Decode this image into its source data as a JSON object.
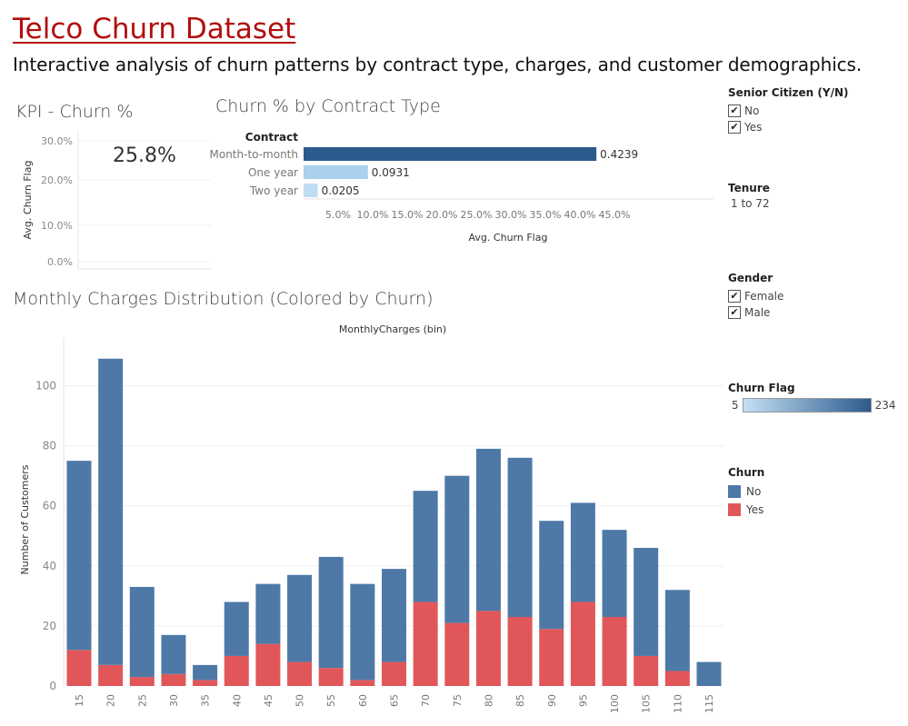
{
  "header": {
    "title": "Telco Churn Dataset",
    "subtitle": "Interactive analysis of churn patterns by contract type, charges, and customer demographics."
  },
  "kpi": {
    "title": "KPI - Churn %",
    "value": "25.8%",
    "ylabel": "Avg. Churn Flag",
    "ticks": [
      "30.0%",
      "20.0%",
      "10.0%",
      "0.0%"
    ]
  },
  "filters": {
    "senior": {
      "title": "Senior Citizen (Y/N)",
      "options": [
        {
          "label": "No",
          "checked": true
        },
        {
          "label": "Yes",
          "checked": true
        }
      ]
    },
    "tenure": {
      "title": "Tenure",
      "value": "1 to 72"
    },
    "gender": {
      "title": "Gender",
      "options": [
        {
          "label": "Female",
          "checked": true
        },
        {
          "label": "Male",
          "checked": true
        }
      ]
    },
    "churn_flag": {
      "title": "Churn Flag",
      "min": "5",
      "max": "234"
    },
    "churn_legend": {
      "title": "Churn",
      "items": [
        {
          "label": "No",
          "color": "#4e79a7"
        },
        {
          "label": "Yes",
          "color": "#e15759"
        }
      ]
    }
  },
  "chart_data": [
    {
      "type": "bar",
      "orientation": "horizontal",
      "title": "Churn % by Contract Type",
      "category_header": "Contract",
      "categories": [
        "Month-to-month",
        "One year",
        "Two year"
      ],
      "values": [
        0.4239,
        0.0931,
        0.0205
      ],
      "labels": [
        "0.4239",
        "0.0931",
        "0.0205"
      ],
      "colors": [
        "#2b5a8c",
        "#a9d0ec",
        "#c0dcf2"
      ],
      "xlabel": "Avg. Churn Flag",
      "xticks": [
        "5.0%",
        "10.0%",
        "15.0%",
        "20.0%",
        "25.0%",
        "30.0%",
        "35.0%",
        "40.0%",
        "45.0%"
      ],
      "xlim": [
        0,
        0.5
      ]
    },
    {
      "type": "bar",
      "stacked": true,
      "title": "Monthly Charges Distribution (Colored by Churn)",
      "xlabel": "MonthlyCharges (bin)",
      "ylabel": "Number of Customers",
      "categories": [
        "15",
        "20",
        "25",
        "30",
        "35",
        "40",
        "45",
        "50",
        "55",
        "60",
        "65",
        "70",
        "75",
        "80",
        "85",
        "90",
        "95",
        "100",
        "105",
        "110",
        "115"
      ],
      "series": [
        {
          "name": "Yes",
          "color": "#e15759",
          "values": [
            12,
            7,
            3,
            4,
            2,
            10,
            14,
            8,
            6,
            2,
            8,
            28,
            21,
            25,
            23,
            19,
            28,
            23,
            10,
            5,
            0
          ]
        },
        {
          "name": "No",
          "color": "#4e79a7",
          "values": [
            63,
            102,
            30,
            13,
            5,
            18,
            20,
            29,
            37,
            32,
            31,
            37,
            49,
            54,
            53,
            36,
            33,
            29,
            36,
            27,
            8
          ]
        }
      ],
      "yticks": [
        0,
        20,
        40,
        60,
        80,
        100
      ],
      "ylim": [
        0,
        112
      ]
    }
  ]
}
